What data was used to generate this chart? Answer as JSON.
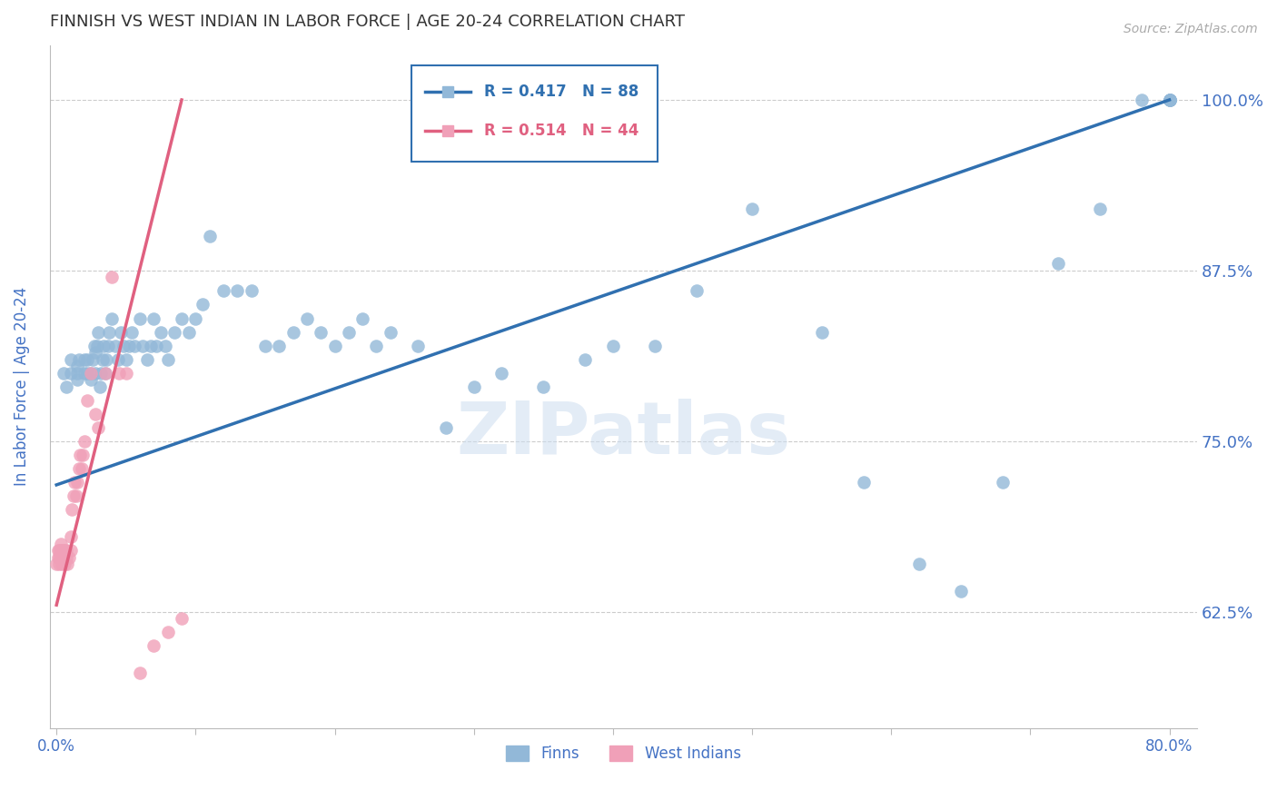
{
  "title": "FINNISH VS WEST INDIAN IN LABOR FORCE | AGE 20-24 CORRELATION CHART",
  "source": "Source: ZipAtlas.com",
  "ylabel_label": "In Labor Force | Age 20-24",
  "x_tick_labels": [
    "0.0%",
    "",
    "",
    "",
    "",
    "",
    "",
    "",
    "80.0%"
  ],
  "x_tick_values": [
    0.0,
    0.1,
    0.2,
    0.3,
    0.4,
    0.5,
    0.6,
    0.7,
    0.8
  ],
  "y_tick_labels": [
    "62.5%",
    "75.0%",
    "87.5%",
    "100.0%"
  ],
  "y_tick_values": [
    0.625,
    0.75,
    0.875,
    1.0
  ],
  "xlim": [
    -0.005,
    0.82
  ],
  "ylim": [
    0.54,
    1.04
  ],
  "legend_r_blue": "R = 0.417",
  "legend_n_blue": "N = 88",
  "legend_r_pink": "R = 0.514",
  "legend_n_pink": "N = 44",
  "legend_label_blue": "Finns",
  "legend_label_pink": "West Indians",
  "blue_color": "#92b8d8",
  "blue_line_color": "#3070b0",
  "pink_color": "#f0a0b8",
  "pink_line_color": "#e06080",
  "grid_color": "#cccccc",
  "tick_color": "#4472c4",
  "watermark_text": "ZIPatlas",
  "finns_x": [
    0.005,
    0.007,
    0.01,
    0.01,
    0.015,
    0.015,
    0.015,
    0.016,
    0.02,
    0.02,
    0.022,
    0.022,
    0.025,
    0.025,
    0.026,
    0.027,
    0.028,
    0.028,
    0.029,
    0.03,
    0.031,
    0.032,
    0.033,
    0.034,
    0.035,
    0.036,
    0.037,
    0.038,
    0.04,
    0.042,
    0.044,
    0.046,
    0.048,
    0.05,
    0.052,
    0.054,
    0.056,
    0.06,
    0.062,
    0.065,
    0.068,
    0.07,
    0.072,
    0.075,
    0.078,
    0.08,
    0.085,
    0.09,
    0.095,
    0.1,
    0.105,
    0.11,
    0.12,
    0.13,
    0.14,
    0.15,
    0.16,
    0.17,
    0.18,
    0.19,
    0.2,
    0.21,
    0.22,
    0.23,
    0.24,
    0.26,
    0.28,
    0.3,
    0.32,
    0.35,
    0.38,
    0.4,
    0.43,
    0.46,
    0.5,
    0.55,
    0.58,
    0.62,
    0.65,
    0.68,
    0.72,
    0.75,
    0.78,
    0.8,
    0.8,
    0.8,
    0.8,
    0.8
  ],
  "finns_y": [
    0.8,
    0.79,
    0.8,
    0.81,
    0.795,
    0.8,
    0.805,
    0.81,
    0.8,
    0.81,
    0.8,
    0.81,
    0.795,
    0.8,
    0.81,
    0.82,
    0.8,
    0.815,
    0.82,
    0.83,
    0.79,
    0.8,
    0.81,
    0.82,
    0.8,
    0.81,
    0.82,
    0.83,
    0.84,
    0.82,
    0.81,
    0.83,
    0.82,
    0.81,
    0.82,
    0.83,
    0.82,
    0.84,
    0.82,
    0.81,
    0.82,
    0.84,
    0.82,
    0.83,
    0.82,
    0.81,
    0.83,
    0.84,
    0.83,
    0.84,
    0.85,
    0.9,
    0.86,
    0.86,
    0.86,
    0.82,
    0.82,
    0.83,
    0.84,
    0.83,
    0.82,
    0.83,
    0.84,
    0.82,
    0.83,
    0.82,
    0.76,
    0.79,
    0.8,
    0.79,
    0.81,
    0.82,
    0.82,
    0.86,
    0.92,
    0.83,
    0.72,
    0.66,
    0.64,
    0.72,
    0.88,
    0.92,
    1.0,
    1.0,
    1.0,
    1.0,
    1.0,
    1.0
  ],
  "west_x": [
    0.0,
    0.001,
    0.001,
    0.002,
    0.002,
    0.002,
    0.003,
    0.003,
    0.003,
    0.004,
    0.004,
    0.004,
    0.005,
    0.005,
    0.006,
    0.006,
    0.007,
    0.007,
    0.008,
    0.009,
    0.01,
    0.01,
    0.011,
    0.012,
    0.013,
    0.014,
    0.015,
    0.016,
    0.017,
    0.018,
    0.019,
    0.02,
    0.022,
    0.025,
    0.028,
    0.03,
    0.035,
    0.04,
    0.045,
    0.05,
    0.06,
    0.07,
    0.08,
    0.09
  ],
  "west_y": [
    0.66,
    0.665,
    0.67,
    0.66,
    0.665,
    0.67,
    0.665,
    0.67,
    0.675,
    0.66,
    0.665,
    0.67,
    0.665,
    0.67,
    0.66,
    0.67,
    0.665,
    0.67,
    0.66,
    0.665,
    0.67,
    0.68,
    0.7,
    0.71,
    0.72,
    0.71,
    0.72,
    0.73,
    0.74,
    0.73,
    0.74,
    0.75,
    0.78,
    0.8,
    0.77,
    0.76,
    0.8,
    0.87,
    0.8,
    0.8,
    0.58,
    0.6,
    0.61,
    0.62
  ],
  "blue_trend_x": [
    0.0,
    0.8
  ],
  "blue_trend_y": [
    0.718,
    1.0
  ],
  "pink_trend_x": [
    0.0,
    0.09
  ],
  "pink_trend_y": [
    0.63,
    1.0
  ]
}
